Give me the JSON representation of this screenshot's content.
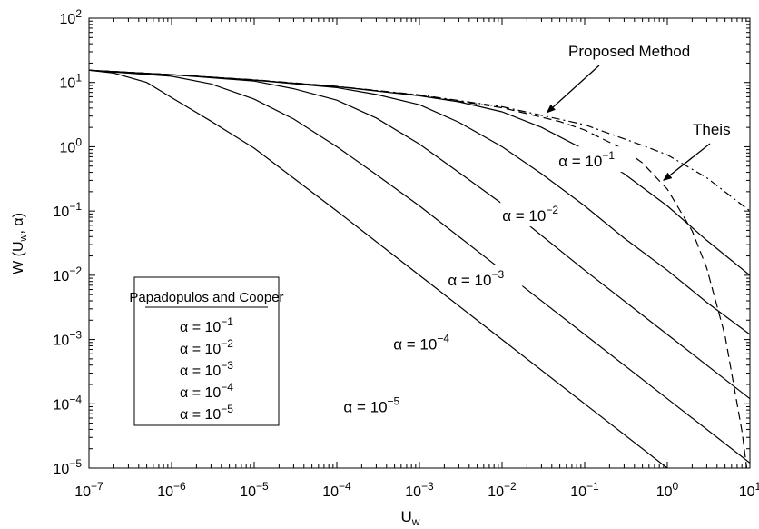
{
  "chart_data": {
    "type": "line",
    "title": "",
    "xlabel": {
      "base": "U",
      "sub": "w"
    },
    "ylabel": {
      "prefix": "W (U",
      "sub": "w",
      "suffix": ", α)"
    },
    "xscale": "log",
    "yscale": "log",
    "xlim": [
      1e-07,
      10
    ],
    "ylim": [
      1e-05,
      100
    ],
    "x_tick_exponents": [
      -7,
      -6,
      -5,
      -4,
      -3,
      -2,
      -1,
      0,
      1
    ],
    "y_tick_exponents": [
      -5,
      -4,
      -3,
      -2,
      -1,
      0,
      1,
      2
    ],
    "tick_base": "10",
    "series": [
      {
        "name": "Theis",
        "style": "dashed",
        "x": [
          1e-07,
          1e-06,
          1e-05,
          0.0001,
          0.001,
          0.01,
          0.05,
          0.1,
          0.3,
          0.5,
          1,
          2,
          3,
          5,
          8,
          10
        ],
        "y": [
          15.54,
          13.24,
          10.94,
          8.63,
          6.33,
          4.04,
          2.47,
          1.82,
          0.906,
          0.56,
          0.219,
          0.0489,
          0.013,
          0.00115,
          3.77e-05,
          4.2e-06
        ]
      },
      {
        "name": "Proposed Method",
        "style": "dashdot",
        "x": [
          1e-07,
          1e-06,
          1e-05,
          0.0001,
          0.001,
          0.01,
          0.1,
          0.5,
          1,
          3,
          10
        ],
        "y": [
          15.5,
          13.2,
          11.0,
          8.7,
          6.4,
          4.2,
          2.2,
          1.05,
          0.75,
          0.33,
          0.1
        ]
      },
      {
        "name": "α = 10^-1",
        "style": "solid",
        "x": [
          1e-07,
          1e-06,
          1e-05,
          0.0001,
          0.001,
          0.003,
          0.01,
          0.03,
          0.1,
          0.3,
          1,
          3,
          10
        ],
        "y": [
          15.5,
          13.2,
          10.9,
          8.6,
          6.2,
          5.0,
          3.5,
          2.0,
          0.9,
          0.38,
          0.12,
          0.035,
          0.01
        ]
      },
      {
        "name": "α = 10^-2",
        "style": "solid",
        "x": [
          1e-07,
          1e-06,
          1e-05,
          0.0001,
          0.0003,
          0.001,
          0.003,
          0.01,
          0.03,
          0.1,
          0.3,
          1,
          3,
          10
        ],
        "y": [
          15.5,
          13.2,
          10.9,
          8.3,
          6.5,
          4.5,
          2.4,
          1.0,
          0.38,
          0.12,
          0.038,
          0.012,
          0.0038,
          0.0012
        ]
      },
      {
        "name": "α = 10^-3",
        "style": "solid",
        "x": [
          1e-07,
          1e-06,
          1e-05,
          3e-05,
          0.0001,
          0.0003,
          0.001,
          0.003,
          0.01,
          0.1,
          1,
          10
        ],
        "y": [
          15.5,
          13.2,
          10.5,
          8.0,
          5.3,
          2.8,
          1.1,
          0.4,
          0.13,
          0.012,
          0.0012,
          0.00012
        ]
      },
      {
        "name": "α = 10^-4",
        "style": "solid",
        "x": [
          1e-07,
          1e-06,
          3e-06,
          1e-05,
          3e-05,
          0.0001,
          0.0003,
          0.001,
          0.01,
          0.1,
          1,
          10
        ],
        "y": [
          15.5,
          12.5,
          9.5,
          5.5,
          2.7,
          1.0,
          0.37,
          0.12,
          0.012,
          0.0012,
          0.00012,
          1.2e-05
        ]
      },
      {
        "name": "α = 10^-5",
        "style": "solid",
        "x": [
          1e-07,
          2e-07,
          5e-07,
          1e-06,
          3e-06,
          1e-05,
          0.0001,
          0.001,
          0.01,
          0.1,
          1,
          10
        ],
        "y": [
          15.5,
          14.0,
          10.0,
          5.8,
          2.5,
          0.95,
          0.1,
          0.01,
          0.001,
          0.0001,
          1e-05,
          1e-06
        ]
      }
    ],
    "annotations": [
      {
        "id": "proposed",
        "text": "Proposed Method",
        "arrow_to": [
          0.035,
          3.4
        ]
      },
      {
        "id": "theis",
        "text": "Theis",
        "arrow_to": [
          0.9,
          0.3
        ]
      },
      {
        "id": "a1",
        "prefix": "α = 10",
        "exp": "−1",
        "at": [
          0.12,
          0.6
        ]
      },
      {
        "id": "a2",
        "prefix": "α = 10",
        "exp": "−2",
        "at": [
          0.025,
          0.085
        ]
      },
      {
        "id": "a3",
        "prefix": "α = 10",
        "exp": "−3",
        "at": [
          0.0055,
          0.0085
        ]
      },
      {
        "id": "a4",
        "prefix": "α = 10",
        "exp": "−4",
        "at": [
          0.0012,
          0.00085
        ]
      },
      {
        "id": "a5",
        "prefix": "α = 10",
        "exp": "−5",
        "at": [
          0.0003,
          9e-05
        ]
      }
    ],
    "legend": {
      "title": "Papadopulos and Cooper",
      "position": "lower-left",
      "entries": [
        {
          "prefix": "α = 10",
          "exp": "−1"
        },
        {
          "prefix": "α = 10",
          "exp": "−2"
        },
        {
          "prefix": "α = 10",
          "exp": "−3"
        },
        {
          "prefix": "α = 10",
          "exp": "−4"
        },
        {
          "prefix": "α = 10",
          "exp": "−5"
        }
      ]
    }
  }
}
